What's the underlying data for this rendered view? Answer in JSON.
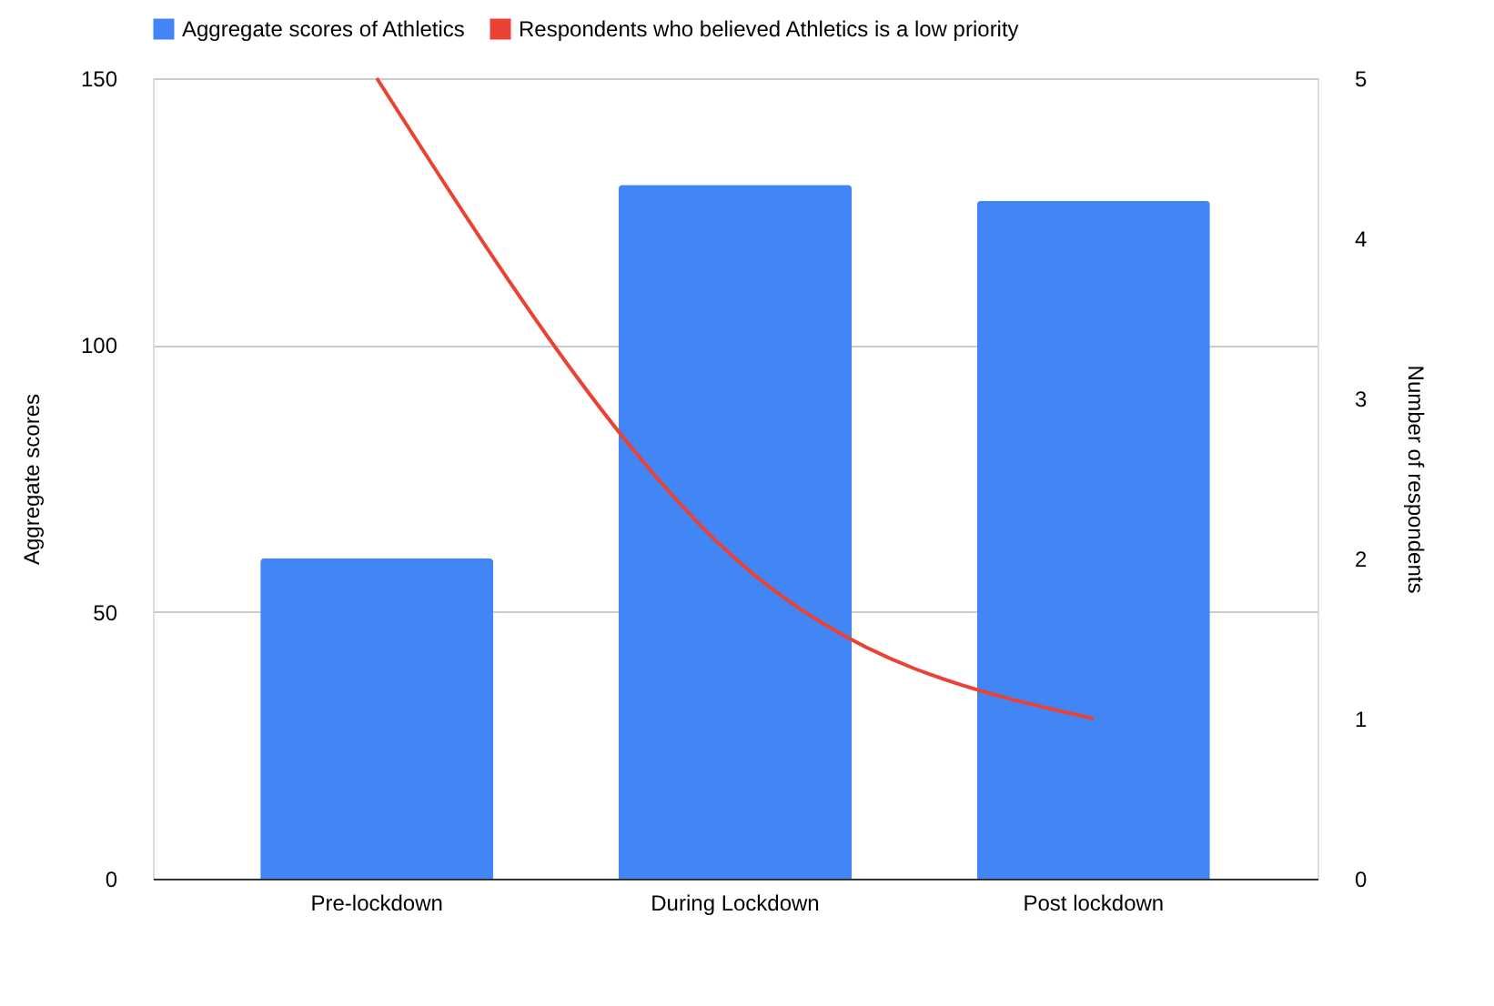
{
  "chart_data": {
    "type": "bar",
    "categories": [
      "Pre-lockdown",
      "During Lockdown",
      "Post lockdown"
    ],
    "series": [
      {
        "name": "Aggregate scores of Athletics",
        "color": "#4285f4",
        "values": [
          60,
          130,
          127
        ]
      },
      {
        "name": "Respondents who believed Athletics is a low priority",
        "type": "line",
        "axis": "y2",
        "color": "#ea4335",
        "values": [
          5,
          2,
          1
        ]
      }
    ],
    "ylabel": "Aggregate scores",
    "y2label": "Number of respondents",
    "ylim": [
      0,
      150
    ],
    "yticks": [
      0,
      50,
      100,
      150
    ],
    "y2lim": [
      0,
      5
    ],
    "y2ticks": [
      0,
      1,
      2,
      3,
      4,
      5
    ],
    "grid": "y",
    "legend": "top",
    "marker": "none"
  }
}
